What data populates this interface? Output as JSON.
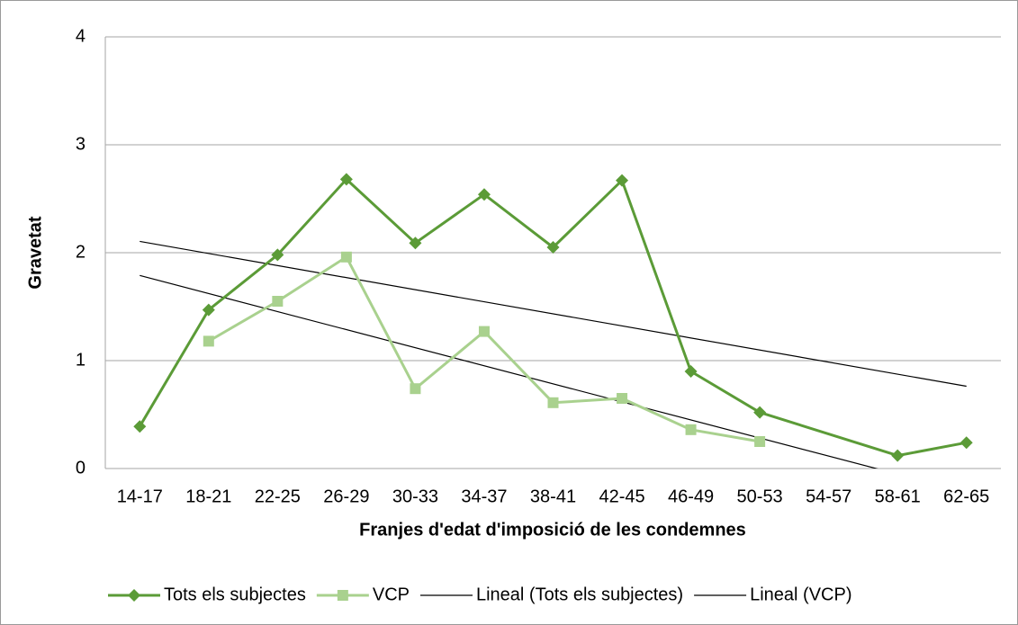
{
  "chart_data": {
    "type": "line",
    "x_label": "Franjes d'edat d'imposició de les condemnes",
    "y_label": "Gravetat",
    "categories": [
      "14-17",
      "18-21",
      "22-25",
      "26-29",
      "30-33",
      "34-37",
      "38-41",
      "42-45",
      "46-49",
      "50-53",
      "54-57",
      "58-61",
      "62-65"
    ],
    "series": [
      {
        "name": "Tots els subjectes",
        "color": "#5b9b37",
        "marker": "diamond",
        "values": [
          0.39,
          1.47,
          1.98,
          2.68,
          2.09,
          2.54,
          2.05,
          2.67,
          0.9,
          0.52,
          null,
          0.12,
          0.24
        ]
      },
      {
        "name": "VCP",
        "color": "#a9d18e",
        "marker": "square",
        "values": [
          null,
          1.18,
          1.55,
          1.96,
          0.74,
          1.27,
          0.61,
          0.65,
          0.36,
          0.25,
          null,
          null,
          null
        ]
      }
    ],
    "trendlines": [
      {
        "name": "Lineal (Tots els subjectes)",
        "color": "#000000",
        "series": 0
      },
      {
        "name": "Lineal (VCP)",
        "color": "#000000",
        "series": 1
      }
    ],
    "ylim": [
      0,
      4
    ],
    "yticks": [
      0,
      1,
      2,
      3,
      4
    ],
    "grid": true,
    "legend": "bottom"
  }
}
